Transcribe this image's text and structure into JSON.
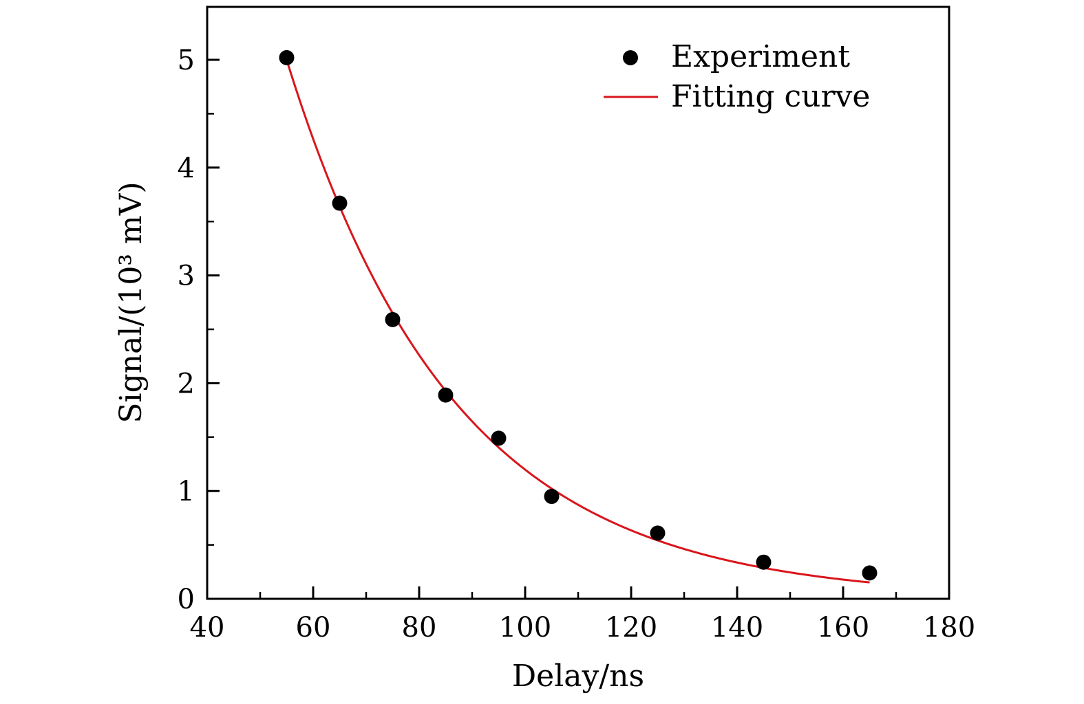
{
  "chart_data": {
    "type": "scatter",
    "title": "",
    "xlabel": "Delay/ns",
    "ylabel": "Signal/(10³ mV)",
    "xlim": [
      40,
      180
    ],
    "ylim": [
      0,
      5.5
    ],
    "x_ticks": [
      40,
      60,
      80,
      100,
      120,
      140,
      160,
      180
    ],
    "x_tick_labels": [
      "40",
      "60",
      "80",
      "100",
      "120",
      "140",
      "160",
      "180"
    ],
    "y_ticks": [
      0,
      1,
      2,
      3,
      4,
      5
    ],
    "y_tick_labels": [
      "0",
      "1",
      "2",
      "3",
      "4",
      "5"
    ],
    "x_minor_step": 10,
    "y_minor_step": 0.5,
    "grid": false,
    "legend_position": "top-right",
    "series": [
      {
        "name": "Experiment",
        "kind": "scatter",
        "color": "#000000",
        "x": [
          55,
          65,
          75,
          85,
          95,
          105,
          125,
          145,
          165
        ],
        "y": [
          5.02,
          3.67,
          2.59,
          1.89,
          1.49,
          0.95,
          0.61,
          0.34,
          0.24
        ]
      },
      {
        "name": "Fitting curve",
        "kind": "line",
        "color": "#d9161c",
        "model": "exponential",
        "amplitude": 5.0,
        "x0": 55,
        "decay_constant_ns": 31.5,
        "x_range": [
          55,
          165
        ]
      }
    ]
  }
}
